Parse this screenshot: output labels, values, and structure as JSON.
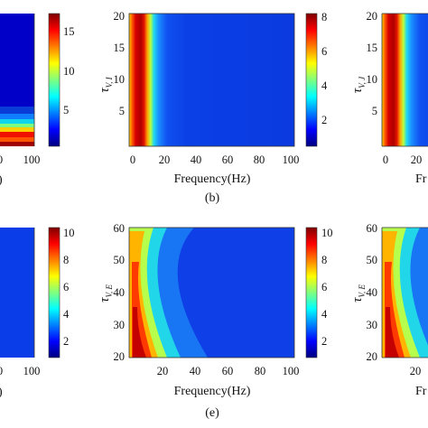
{
  "figure": {
    "colormap": "jet",
    "colormap_stops": [
      "#00007f",
      "#0000ff",
      "#007fff",
      "#00ffff",
      "#7fff7f",
      "#ffff00",
      "#ff7f00",
      "#ff0000",
      "#7f0000"
    ]
  },
  "chart_data": [
    {
      "id": "a",
      "type": "heatmap",
      "panel_label": "",
      "xlabel": "",
      "xticks": [
        "0",
        "100"
      ],
      "xlim": [
        0,
        100
      ],
      "ylabel": "",
      "yticks": [],
      "colorbar": {
        "ticks": [
          "5",
          "10",
          "15"
        ],
        "range": [
          1,
          18
        ]
      },
      "visible_part": "right edge only"
    },
    {
      "id": "b",
      "type": "heatmap",
      "panel_label": "(b)",
      "xlabel": "Frequency(Hz)",
      "xlim": [
        0,
        100
      ],
      "xticks": [
        "0",
        "20",
        "40",
        "60",
        "80",
        "100"
      ],
      "ylabel_base": "τ",
      "ylabel_sub": "V, I",
      "ylim": [
        0,
        21
      ],
      "yticks": [
        "5",
        "10",
        "15",
        "20"
      ],
      "colorbar": {
        "ticks": [
          "2",
          "4",
          "6",
          "8"
        ],
        "range": [
          0.5,
          8.3
        ]
      },
      "peak": {
        "frequency_hz": 5,
        "note": "maximum near 5 Hz, independent of tau"
      }
    },
    {
      "id": "c",
      "type": "heatmap",
      "panel_label": "",
      "xlabel": "Fr",
      "xlim": [
        0,
        100
      ],
      "xticks": [
        "0",
        "20"
      ],
      "ylabel_base": "τ",
      "ylabel_sub": "V, J",
      "ylim": [
        0,
        21
      ],
      "yticks": [
        "5",
        "10",
        "15",
        "20"
      ],
      "visible_part": "left portion only"
    },
    {
      "id": "d",
      "type": "heatmap",
      "panel_label": "",
      "xlabel": "",
      "xticks": [
        "0",
        "100"
      ],
      "xlim": [
        0,
        100
      ],
      "colorbar": {
        "ticks": [
          "2",
          "4",
          "6",
          "8",
          "10"
        ],
        "range": [
          0.8,
          10.6
        ]
      },
      "visible_part": "right edge only"
    },
    {
      "id": "e",
      "type": "heatmap",
      "panel_label": "(e)",
      "xlabel": "Frequency(Hz)",
      "xlim": [
        0,
        100
      ],
      "xticks": [
        "20",
        "40",
        "60",
        "80",
        "100"
      ],
      "ylabel_base": "τ",
      "ylabel_sub": "V, E",
      "ylim": [
        20,
        60
      ],
      "yticks": [
        "20",
        "30",
        "40",
        "50",
        "60"
      ],
      "colorbar": {
        "ticks": [
          "2",
          "4",
          "6",
          "8",
          "10"
        ],
        "range": [
          0.8,
          10.6
        ]
      },
      "peak": {
        "note": "maximum at low frequency and low tau, decaying along a curved band"
      }
    },
    {
      "id": "f",
      "type": "heatmap",
      "panel_label": "",
      "xlabel": "Fr",
      "xlim": [
        0,
        100
      ],
      "xticks": [
        "20"
      ],
      "ylabel_base": "τ",
      "ylabel_sub": "V, E",
      "ylim": [
        20,
        60
      ],
      "yticks": [
        "20",
        "30",
        "40",
        "50",
        "60"
      ],
      "visible_part": "left portion only"
    }
  ]
}
